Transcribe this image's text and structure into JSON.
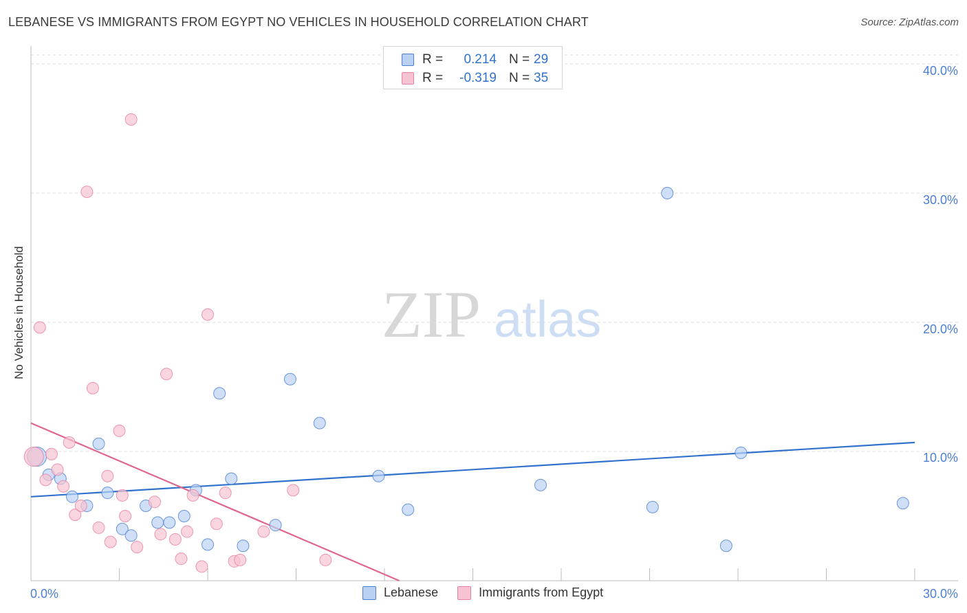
{
  "title": "LEBANESE VS IMMIGRANTS FROM EGYPT NO VEHICLES IN HOUSEHOLD CORRELATION CHART",
  "source": "Source: ZipAtlas.com",
  "watermark": {
    "zip": "ZIP",
    "atlas": "atlas"
  },
  "colors": {
    "blue": "#4a7fd4",
    "blue_fill": "#b9d1f3",
    "blue_line": "#3173cc",
    "pink": "#e8819f",
    "pink_fill": "#f7c3d2",
    "pink_line": "#e0668f",
    "axis_text": "#4a7fd4"
  },
  "legend_top": [
    {
      "key": "R =",
      "r": "0.214",
      "n_key": "N =",
      "n": "29",
      "swatch": "blue"
    },
    {
      "key": "R =",
      "r": "-0.319",
      "n_key": "N =",
      "n": "35",
      "swatch": "pink"
    }
  ],
  "legend_bottom": [
    {
      "label": "Lebanese",
      "swatch": "blue"
    },
    {
      "label": "Immigrants from Egypt",
      "swatch": "pink"
    }
  ],
  "chart_data": {
    "type": "scatter",
    "title": "LEBANESE VS IMMIGRANTS FROM EGYPT NO VEHICLES IN HOUSEHOLD CORRELATION CHART",
    "xlabel": "",
    "ylabel": "No Vehicles in Household",
    "xlim": [
      0,
      30
    ],
    "ylim": [
      0,
      40
    ],
    "x_ticks": [
      "0.0%",
      "30.0%"
    ],
    "y_ticks": [
      "10.0%",
      "20.0%",
      "30.0%",
      "40.0%"
    ],
    "y_tick_values": [
      10,
      20,
      30,
      40
    ],
    "grid": true,
    "legend_position": "top-center",
    "series": [
      {
        "name": "Lebanese",
        "color": "blue",
        "trend": {
          "x": [
            0,
            30
          ],
          "y": [
            6.5,
            10.7
          ]
        },
        "points": [
          {
            "x": 0.2,
            "y": 9.6,
            "big": true
          },
          {
            "x": 0.6,
            "y": 8.2
          },
          {
            "x": 1.0,
            "y": 7.9
          },
          {
            "x": 1.4,
            "y": 6.5
          },
          {
            "x": 1.9,
            "y": 5.8
          },
          {
            "x": 2.3,
            "y": 10.6
          },
          {
            "x": 2.6,
            "y": 6.8
          },
          {
            "x": 3.1,
            "y": 4.0
          },
          {
            "x": 3.4,
            "y": 3.5
          },
          {
            "x": 3.9,
            "y": 5.8
          },
          {
            "x": 4.3,
            "y": 4.5
          },
          {
            "x": 4.7,
            "y": 4.5
          },
          {
            "x": 5.2,
            "y": 5.0
          },
          {
            "x": 5.6,
            "y": 7.0
          },
          {
            "x": 6.0,
            "y": 2.8
          },
          {
            "x": 6.4,
            "y": 14.5
          },
          {
            "x": 6.8,
            "y": 7.9
          },
          {
            "x": 7.2,
            "y": 2.7
          },
          {
            "x": 8.3,
            "y": 4.3
          },
          {
            "x": 8.8,
            "y": 15.6
          },
          {
            "x": 9.8,
            "y": 12.2
          },
          {
            "x": 11.8,
            "y": 8.1
          },
          {
            "x": 12.8,
            "y": 5.5
          },
          {
            "x": 17.3,
            "y": 7.4
          },
          {
            "x": 21.1,
            "y": 5.7
          },
          {
            "x": 21.6,
            "y": 30.0
          },
          {
            "x": 23.6,
            "y": 2.7
          },
          {
            "x": 24.1,
            "y": 9.9
          },
          {
            "x": 29.6,
            "y": 6.0
          }
        ]
      },
      {
        "name": "Immigrants from Egypt",
        "color": "pink",
        "trend": {
          "x": [
            0,
            12.5
          ],
          "y": [
            12.2,
            0
          ]
        },
        "points": [
          {
            "x": 0.1,
            "y": 9.6,
            "big": true
          },
          {
            "x": 0.3,
            "y": 19.6
          },
          {
            "x": 0.5,
            "y": 7.8
          },
          {
            "x": 0.7,
            "y": 9.8
          },
          {
            "x": 0.9,
            "y": 8.6
          },
          {
            "x": 1.1,
            "y": 7.3
          },
          {
            "x": 1.3,
            "y": 10.7
          },
          {
            "x": 1.5,
            "y": 5.1
          },
          {
            "x": 1.7,
            "y": 5.8
          },
          {
            "x": 1.9,
            "y": 30.1
          },
          {
            "x": 2.1,
            "y": 14.9
          },
          {
            "x": 2.3,
            "y": 4.1
          },
          {
            "x": 2.6,
            "y": 8.1
          },
          {
            "x": 2.7,
            "y": 3.0
          },
          {
            "x": 3.0,
            "y": 11.6
          },
          {
            "x": 3.1,
            "y": 6.6
          },
          {
            "x": 3.2,
            "y": 5.0
          },
          {
            "x": 3.4,
            "y": 35.7
          },
          {
            "x": 3.6,
            "y": 2.6
          },
          {
            "x": 4.2,
            "y": 6.1
          },
          {
            "x": 4.4,
            "y": 3.6
          },
          {
            "x": 4.6,
            "y": 16.0
          },
          {
            "x": 4.9,
            "y": 3.2
          },
          {
            "x": 5.1,
            "y": 1.7
          },
          {
            "x": 5.3,
            "y": 3.8
          },
          {
            "x": 5.5,
            "y": 6.6
          },
          {
            "x": 5.8,
            "y": 1.1
          },
          {
            "x": 6.0,
            "y": 20.6
          },
          {
            "x": 6.3,
            "y": 4.4
          },
          {
            "x": 6.6,
            "y": 6.8
          },
          {
            "x": 6.9,
            "y": 1.5
          },
          {
            "x": 7.1,
            "y": 1.6
          },
          {
            "x": 7.9,
            "y": 3.8
          },
          {
            "x": 8.9,
            "y": 7.0
          },
          {
            "x": 10.0,
            "y": 1.6
          }
        ]
      }
    ]
  }
}
